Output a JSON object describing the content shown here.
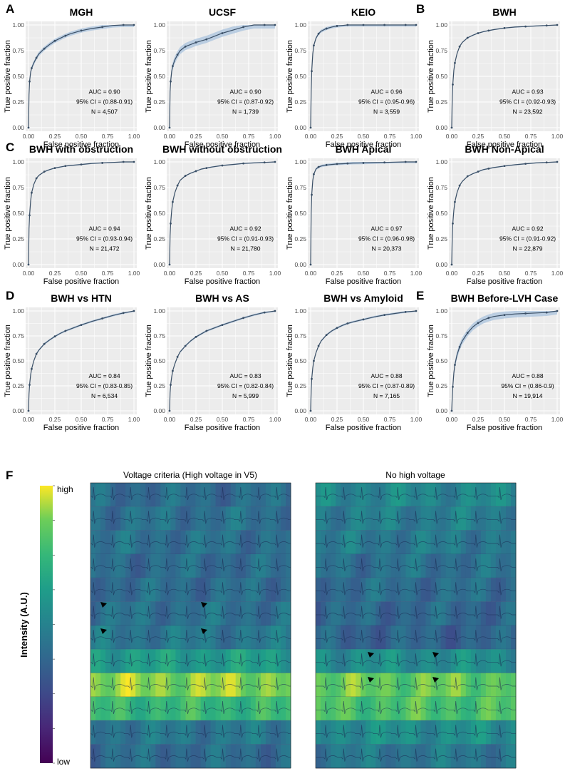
{
  "panel_letters": {
    "A": "A",
    "B": "B",
    "C": "C",
    "D": "D",
    "E": "E",
    "F": "F"
  },
  "axis_labels": {
    "x": "False positive fraction",
    "y": "True positive fraction"
  },
  "ticks": [
    "0.00",
    "0.25",
    "0.50",
    "0.75",
    "1.00"
  ],
  "colors": {
    "curve": "#3a4f66",
    "band": "#a9c3dd",
    "panel_bg": "#ececec",
    "grid": "#ffffff"
  },
  "chart_data": [
    {
      "type": "line",
      "title": "MGH",
      "xlabel": "False positive fraction",
      "ylabel": "True positive fraction",
      "xlim": [
        0,
        1
      ],
      "ylim": [
        0,
        1
      ],
      "auc": "AUC = 0.90",
      "ci": "95% CI = (0.88-0.91)",
      "n": "N = 4,507",
      "x": [
        0,
        0.005,
        0.01,
        0.02,
        0.03,
        0.05,
        0.075,
        0.1,
        0.15,
        0.2,
        0.25,
        0.3,
        0.35,
        0.4,
        0.5,
        0.6,
        0.7,
        0.8,
        0.9,
        1.0
      ],
      "y": [
        0,
        0.32,
        0.45,
        0.54,
        0.58,
        0.63,
        0.68,
        0.72,
        0.77,
        0.81,
        0.845,
        0.87,
        0.895,
        0.915,
        0.945,
        0.965,
        0.98,
        0.995,
        1.0,
        1.0
      ],
      "band": 0.02
    },
    {
      "type": "line",
      "title": "UCSF",
      "xlabel": "False positive fraction",
      "ylabel": "True positive fraction",
      "xlim": [
        0,
        1
      ],
      "ylim": [
        0,
        1
      ],
      "auc": "AUC = 0.90",
      "ci": "95% CI = (0.87-0.92)",
      "n": "N = 1,739",
      "x": [
        0,
        0.005,
        0.01,
        0.02,
        0.03,
        0.05,
        0.075,
        0.1,
        0.15,
        0.2,
        0.25,
        0.3,
        0.35,
        0.4,
        0.5,
        0.6,
        0.7,
        0.8,
        0.9,
        1.0
      ],
      "y": [
        0,
        0.35,
        0.45,
        0.55,
        0.6,
        0.66,
        0.71,
        0.75,
        0.79,
        0.81,
        0.83,
        0.845,
        0.86,
        0.88,
        0.92,
        0.95,
        0.98,
        1.0,
        1.0,
        1.0
      ],
      "band": 0.035
    },
    {
      "type": "line",
      "title": "KEIO",
      "xlabel": "False positive fraction",
      "ylabel": "True positive fraction",
      "xlim": [
        0,
        1
      ],
      "ylim": [
        0,
        1
      ],
      "auc": "AUC = 0.96",
      "ci": "95% CI = (0.95-0.96)",
      "n": "N = 3,559",
      "x": [
        0,
        0.005,
        0.01,
        0.02,
        0.03,
        0.05,
        0.075,
        0.1,
        0.15,
        0.2,
        0.25,
        0.3,
        0.35,
        0.4,
        0.5,
        0.6,
        0.7,
        0.8,
        0.9,
        1.0
      ],
      "y": [
        0,
        0.35,
        0.55,
        0.72,
        0.8,
        0.87,
        0.915,
        0.94,
        0.965,
        0.98,
        0.99,
        0.995,
        1.0,
        1.0,
        1.0,
        1.0,
        1.0,
        1.0,
        1.0,
        1.0
      ],
      "band": 0.015
    },
    {
      "type": "line",
      "title": "BWH",
      "xlabel": "False positive fraction",
      "ylabel": "True positive fraction",
      "xlim": [
        0,
        1
      ],
      "ylim": [
        0,
        1
      ],
      "auc": "AUC = 0.93",
      "ci": "95% CI = (0.92-0.93)",
      "n": "N = 23,592",
      "x": [
        0,
        0.005,
        0.01,
        0.02,
        0.03,
        0.05,
        0.075,
        0.1,
        0.15,
        0.2,
        0.25,
        0.3,
        0.35,
        0.4,
        0.5,
        0.6,
        0.7,
        0.8,
        0.9,
        1.0
      ],
      "y": [
        0,
        0.3,
        0.42,
        0.56,
        0.63,
        0.72,
        0.79,
        0.83,
        0.875,
        0.9,
        0.92,
        0.935,
        0.945,
        0.955,
        0.97,
        0.98,
        0.985,
        0.99,
        0.995,
        1.0
      ],
      "band": 0.006
    },
    {
      "type": "line",
      "title": "BWH with obstruction",
      "xlabel": "False positive fraction",
      "ylabel": "True positive fraction",
      "xlim": [
        0,
        1
      ],
      "ylim": [
        0,
        1
      ],
      "auc": "AUC = 0.94",
      "ci": "95% CI = (0.93-0.94)",
      "n": "N = 21,472",
      "x": [
        0,
        0.005,
        0.01,
        0.02,
        0.03,
        0.05,
        0.075,
        0.1,
        0.15,
        0.2,
        0.25,
        0.3,
        0.35,
        0.4,
        0.5,
        0.6,
        0.7,
        0.8,
        0.9,
        1.0
      ],
      "y": [
        0,
        0.35,
        0.48,
        0.62,
        0.7,
        0.78,
        0.84,
        0.87,
        0.905,
        0.925,
        0.94,
        0.95,
        0.96,
        0.965,
        0.975,
        0.985,
        0.99,
        0.995,
        1.0,
        1.0
      ],
      "band": 0.006
    },
    {
      "type": "line",
      "title": "BWH without obstruction",
      "xlabel": "False positive fraction",
      "ylabel": "True positive fraction",
      "xlim": [
        0,
        1
      ],
      "ylim": [
        0,
        1
      ],
      "auc": "AUC = 0.92",
      "ci": "95% CI = (0.91-0.93)",
      "n": "N = 21,780",
      "x": [
        0,
        0.005,
        0.01,
        0.02,
        0.03,
        0.05,
        0.075,
        0.1,
        0.15,
        0.2,
        0.25,
        0.3,
        0.35,
        0.4,
        0.5,
        0.6,
        0.7,
        0.8,
        0.9,
        1.0
      ],
      "y": [
        0,
        0.28,
        0.4,
        0.53,
        0.61,
        0.7,
        0.77,
        0.82,
        0.865,
        0.89,
        0.91,
        0.93,
        0.94,
        0.95,
        0.965,
        0.975,
        0.985,
        0.99,
        0.995,
        1.0
      ],
      "band": 0.006
    },
    {
      "type": "line",
      "title": "BWH Apical",
      "xlabel": "False positive fraction",
      "ylabel": "True positive fraction",
      "xlim": [
        0,
        1
      ],
      "ylim": [
        0,
        1
      ],
      "auc": "AUC = 0.97",
      "ci": "95% CI = (0.96-0.98)",
      "n": "N = 20,373",
      "x": [
        0,
        0.005,
        0.01,
        0.02,
        0.03,
        0.05,
        0.075,
        0.1,
        0.15,
        0.2,
        0.25,
        0.3,
        0.35,
        0.4,
        0.5,
        0.6,
        0.7,
        0.8,
        0.9,
        1.0
      ],
      "y": [
        0,
        0.5,
        0.68,
        0.82,
        0.88,
        0.93,
        0.95,
        0.96,
        0.97,
        0.975,
        0.98,
        0.982,
        0.985,
        0.988,
        0.99,
        0.993,
        0.995,
        0.998,
        1.0,
        1.0
      ],
      "band": 0.012
    },
    {
      "type": "line",
      "title": "BWH Non-Apical",
      "xlabel": "False positive fraction",
      "ylabel": "True positive fraction",
      "xlim": [
        0,
        1
      ],
      "ylim": [
        0,
        1
      ],
      "auc": "AUC = 0.92",
      "ci": "95% CI = (0.91-0.92)",
      "n": "N = 22,879",
      "x": [
        0,
        0.005,
        0.01,
        0.02,
        0.03,
        0.05,
        0.075,
        0.1,
        0.15,
        0.2,
        0.25,
        0.3,
        0.35,
        0.4,
        0.5,
        0.6,
        0.7,
        0.8,
        0.9,
        1.0
      ],
      "y": [
        0,
        0.28,
        0.4,
        0.53,
        0.61,
        0.7,
        0.77,
        0.81,
        0.86,
        0.885,
        0.905,
        0.925,
        0.935,
        0.945,
        0.96,
        0.972,
        0.982,
        0.99,
        0.995,
        1.0
      ],
      "band": 0.006
    },
    {
      "type": "line",
      "title": "BWH vs HTN",
      "xlabel": "False positive fraction",
      "ylabel": "True positive fraction",
      "xlim": [
        0,
        1
      ],
      "ylim": [
        0,
        1
      ],
      "auc": "AUC = 0.84",
      "ci": "95% CI = (0.83-0.85)",
      "n": "N = 6,534",
      "x": [
        0,
        0.005,
        0.01,
        0.02,
        0.03,
        0.05,
        0.075,
        0.1,
        0.15,
        0.2,
        0.25,
        0.3,
        0.35,
        0.4,
        0.5,
        0.6,
        0.7,
        0.8,
        0.9,
        1.0
      ],
      "y": [
        0,
        0.17,
        0.26,
        0.36,
        0.42,
        0.5,
        0.57,
        0.61,
        0.67,
        0.71,
        0.745,
        0.775,
        0.8,
        0.82,
        0.86,
        0.895,
        0.925,
        0.955,
        0.98,
        1.0
      ],
      "band": 0.01
    },
    {
      "type": "line",
      "title": "BWH vs AS",
      "xlabel": "False positive fraction",
      "ylabel": "True positive fraction",
      "xlim": [
        0,
        1
      ],
      "ylim": [
        0,
        1
      ],
      "auc": "AUC = 0.83",
      "ci": "95% CI = (0.82-0.84)",
      "n": "N = 5,999",
      "x": [
        0,
        0.005,
        0.01,
        0.02,
        0.03,
        0.05,
        0.075,
        0.1,
        0.15,
        0.2,
        0.25,
        0.3,
        0.35,
        0.4,
        0.5,
        0.6,
        0.7,
        0.8,
        0.9,
        1.0
      ],
      "y": [
        0,
        0.18,
        0.26,
        0.34,
        0.4,
        0.47,
        0.54,
        0.59,
        0.65,
        0.7,
        0.74,
        0.77,
        0.8,
        0.82,
        0.86,
        0.895,
        0.93,
        0.96,
        0.985,
        1.0
      ],
      "band": 0.01
    },
    {
      "type": "line",
      "title": "BWH vs Amyloid",
      "xlabel": "False positive fraction",
      "ylabel": "True positive fraction",
      "xlim": [
        0,
        1
      ],
      "ylim": [
        0,
        1
      ],
      "auc": "AUC = 0.88",
      "ci": "95% CI = (0.87-0.89)",
      "n": "N = 7,165",
      "x": [
        0,
        0.005,
        0.01,
        0.02,
        0.03,
        0.05,
        0.075,
        0.1,
        0.15,
        0.2,
        0.25,
        0.3,
        0.35,
        0.4,
        0.5,
        0.6,
        0.7,
        0.8,
        0.9,
        1.0
      ],
      "y": [
        0,
        0.2,
        0.32,
        0.43,
        0.5,
        0.58,
        0.65,
        0.7,
        0.76,
        0.8,
        0.83,
        0.855,
        0.875,
        0.89,
        0.915,
        0.94,
        0.96,
        0.975,
        0.99,
        1.0
      ],
      "band": 0.01
    },
    {
      "type": "line",
      "title": "BWH Before-LVH Case",
      "xlabel": "False positive fraction",
      "ylabel": "True positive fraction",
      "xlim": [
        0,
        1
      ],
      "ylim": [
        0,
        1
      ],
      "auc": "AUC = 0.88",
      "ci": "95% CI = (0.86-0.9)",
      "n": "N = 19,914",
      "x": [
        0,
        0.005,
        0.01,
        0.02,
        0.03,
        0.05,
        0.075,
        0.1,
        0.15,
        0.2,
        0.25,
        0.3,
        0.35,
        0.4,
        0.5,
        0.6,
        0.7,
        0.8,
        0.9,
        1.0
      ],
      "y": [
        0,
        0.14,
        0.24,
        0.38,
        0.46,
        0.56,
        0.64,
        0.7,
        0.78,
        0.84,
        0.88,
        0.91,
        0.93,
        0.945,
        0.96,
        0.97,
        0.975,
        0.98,
        0.985,
        1.0
      ],
      "band": 0.035
    }
  ],
  "saliency": {
    "colorbar": {
      "high": "high",
      "low": "low",
      "label": "Intensity (A.U.)"
    },
    "left": {
      "title": "Voltage criteria (High voltage in V5)",
      "rows": 12,
      "row_intensity": [
        0.4,
        0.42,
        0.42,
        0.4,
        0.4,
        0.42,
        0.45,
        0.62,
        0.9,
        0.75,
        0.45,
        0.4
      ],
      "beat_positions": [
        0.015,
        0.11,
        0.2,
        0.29,
        0.38,
        0.48,
        0.57,
        0.66,
        0.75,
        0.84,
        0.93
      ]
    },
    "right": {
      "title": "No high voltage",
      "rows": 12,
      "row_intensity": [
        0.52,
        0.48,
        0.46,
        0.42,
        0.4,
        0.38,
        0.36,
        0.55,
        0.85,
        0.8,
        0.55,
        0.45
      ],
      "beat_positions": [
        0.05,
        0.14,
        0.23,
        0.32,
        0.41,
        0.5,
        0.6,
        0.7,
        0.8,
        0.92
      ]
    }
  }
}
